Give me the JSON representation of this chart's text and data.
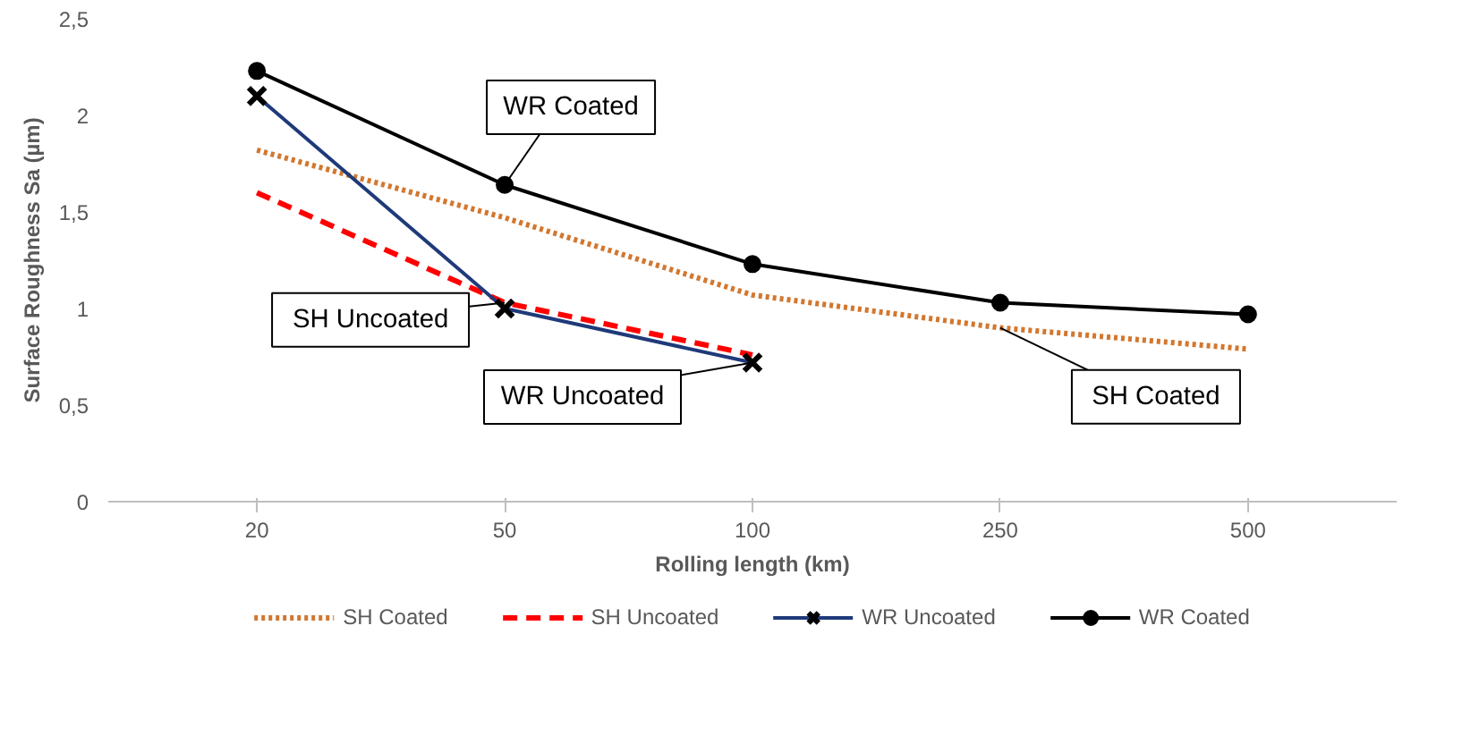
{
  "chart_data": {
    "type": "line",
    "xlabel": "Rolling length (km)",
    "ylabel": "Surface Roughness Sa (µm)",
    "categories": [
      "20",
      "50",
      "100",
      "250",
      "500"
    ],
    "ylim": [
      0,
      2.5
    ],
    "yticks": [
      {
        "value": 0,
        "label": "0"
      },
      {
        "value": 0.5,
        "label": "0,5"
      },
      {
        "value": 1,
        "label": "1"
      },
      {
        "value": 1.5,
        "label": "1,5"
      },
      {
        "value": 2,
        "label": "2"
      },
      {
        "value": 2.5,
        "label": "2,5"
      }
    ],
    "grid": false,
    "legend": "bottom",
    "series": [
      {
        "name": "SH Coated",
        "color": "#d2772f",
        "line_style": "dotted",
        "marker": "none",
        "values": [
          1.82,
          1.47,
          1.07,
          0.9,
          0.79
        ]
      },
      {
        "name": "SH Uncoated",
        "color": "#ff0000",
        "line_style": "dashed",
        "marker": "none",
        "values": [
          1.6,
          1.03,
          0.76,
          null,
          null
        ]
      },
      {
        "name": "WR Uncoated",
        "color": "#1f3a7a",
        "line_style": "solid",
        "marker": "cross",
        "values": [
          2.1,
          1.0,
          0.72,
          null,
          null
        ]
      },
      {
        "name": "WR Coated",
        "color": "#000000",
        "line_style": "solid",
        "marker": "circle",
        "values": [
          2.23,
          1.64,
          1.23,
          1.03,
          0.97
        ]
      }
    ],
    "annotations": [
      {
        "text": "WR Coated",
        "x": "50",
        "y": 1.64
      },
      {
        "text": "SH Uncoated",
        "x": "50",
        "y": 1.03
      },
      {
        "text": "WR Uncoated",
        "x": "100",
        "y": 0.72
      },
      {
        "text": "SH Coated",
        "x": "250",
        "y": 0.9
      }
    ]
  }
}
